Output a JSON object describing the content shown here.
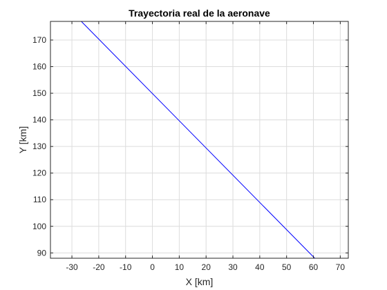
{
  "chart_data": {
    "type": "line",
    "title": "Trayectoria real de la aeronave",
    "xlabel": "X [km]",
    "ylabel": "Y [km]",
    "xlim": [
      -38,
      73
    ],
    "ylim": [
      88,
      177
    ],
    "grid": true,
    "xticks": [
      -30,
      -20,
      -10,
      0,
      10,
      20,
      30,
      40,
      50,
      60,
      70
    ],
    "yticks": [
      90,
      100,
      110,
      120,
      130,
      140,
      150,
      160,
      170
    ],
    "series": [
      {
        "color": "#0000ff",
        "x": [
          -26.5,
          60.5
        ],
        "y": [
          177,
          88
        ]
      }
    ]
  }
}
